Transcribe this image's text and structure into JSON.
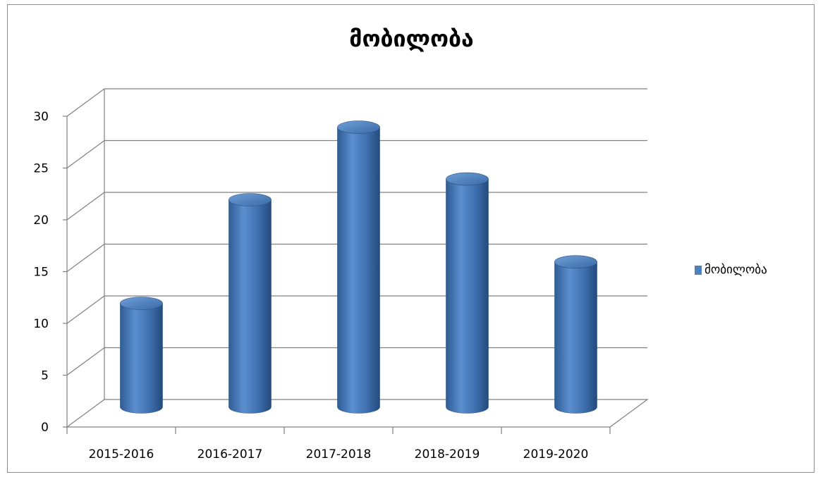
{
  "chart_data": {
    "type": "bar",
    "title": "მობილობა",
    "categories": [
      "2015-2016",
      "2016-2017",
      "2017-2018",
      "2018-2019",
      "2019-2020"
    ],
    "series": [
      {
        "name": "მობილობა",
        "values": [
          10,
          20,
          27,
          22,
          14
        ],
        "color": "#4f81bd"
      }
    ],
    "xlabel": "",
    "ylabel": "",
    "ylim": [
      0,
      30
    ],
    "yticks": [
      0,
      5,
      10,
      15,
      20,
      25,
      30
    ],
    "grid": true,
    "legend_position": "right",
    "style": "3d-cylinder"
  }
}
